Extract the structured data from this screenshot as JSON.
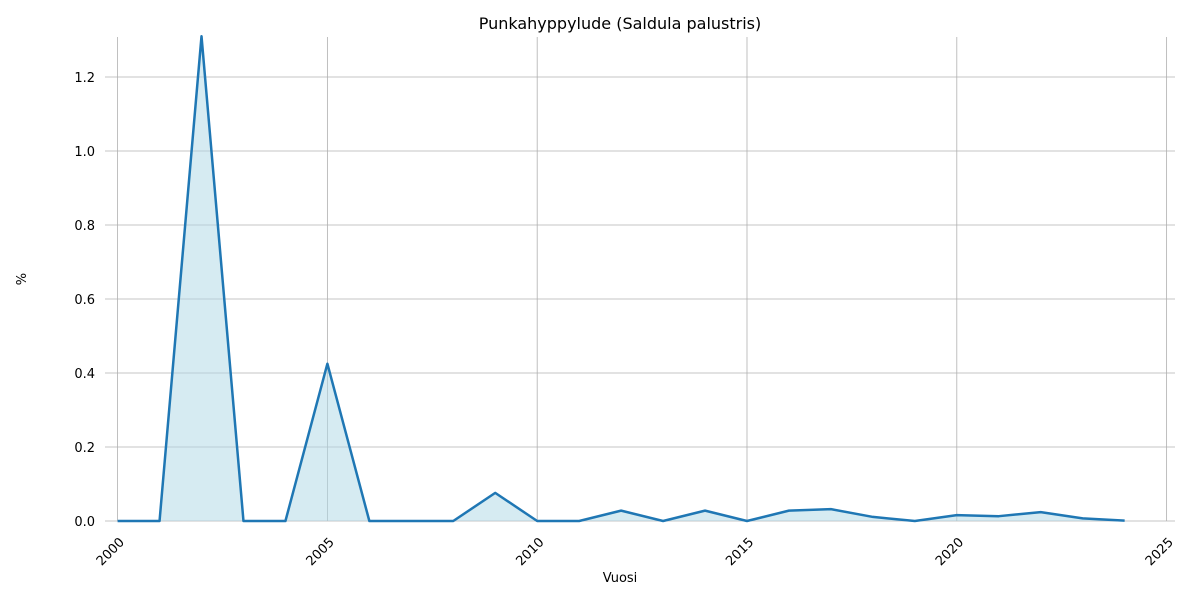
{
  "chart_data": {
    "type": "line",
    "title": "Punkahyppylude (Saldula palustris)",
    "x_label": "Vuosi",
    "y_label": "%",
    "x": [
      2000,
      2001,
      2002,
      2003,
      2004,
      2005,
      2006,
      2007,
      2008,
      2009,
      2010,
      2011,
      2012,
      2013,
      2014,
      2015,
      2016,
      2017,
      2018,
      2019,
      2020,
      2021,
      2022,
      2023,
      2024
    ],
    "values": [
      0,
      0,
      1.31,
      0,
      0,
      0.425,
      0,
      0,
      0,
      0.076,
      0,
      0,
      0.028,
      0,
      0.028,
      0,
      0.028,
      0.032,
      0.011,
      0,
      0.016,
      0.013,
      0.024,
      0.007,
      0.001
    ],
    "color": "#1f77b4",
    "fill_color": "#add8e6",
    "xlim": [
      1999.7,
      2025.2
    ],
    "ylim": [
      0,
      1.308
    ],
    "xticks": [
      2000,
      2005,
      2010,
      2015,
      2020,
      2025
    ],
    "yticks": [
      {
        "value": 0,
        "label": "0.0"
      },
      {
        "value": 0.2,
        "label": "0.2"
      },
      {
        "value": 0.4,
        "label": "0.4"
      },
      {
        "value": 0.6,
        "label": "0.6"
      },
      {
        "value": 0.8,
        "label": "0.8"
      },
      {
        "value": 1.0,
        "label": "1.0"
      },
      {
        "value": 1.2,
        "label": "1.2"
      }
    ],
    "grid": true
  }
}
